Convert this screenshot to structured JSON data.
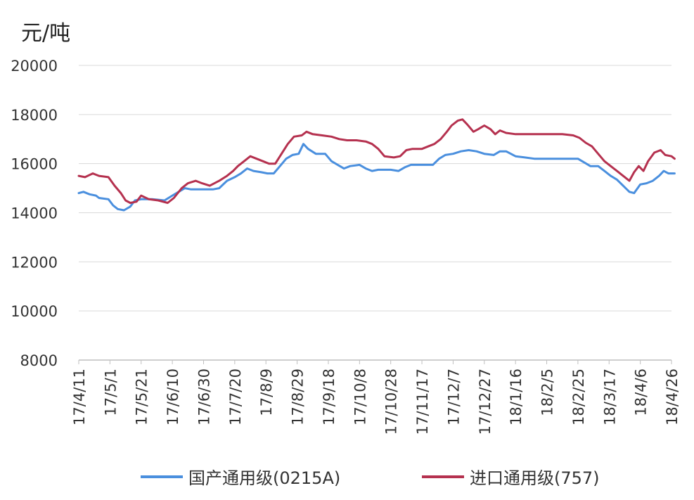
{
  "chart_data": {
    "type": "line",
    "unit_label": "元/吨",
    "ylim": [
      8000,
      20000
    ],
    "yticks": [
      20000,
      18000,
      16000,
      14000,
      12000,
      10000,
      8000
    ],
    "grid": "horizontal",
    "legend_position": "bottom",
    "x_tick_labels": [
      "17/4/11",
      "17/5/1",
      "17/5/21",
      "17/6/10",
      "17/6/30",
      "17/7/20",
      "17/8/9",
      "17/8/29",
      "17/9/18",
      "17/10/8",
      "17/10/28",
      "17/11/17",
      "17/12/7",
      "17/12/27",
      "18/1/16",
      "18/2/5",
      "18/2/25",
      "18/3/17",
      "18/4/6",
      "18/4/26"
    ],
    "x_start": "17/4/11",
    "x_end": "18/4/26",
    "series": [
      {
        "name": "国产通用级(0215A)",
        "color": "#4a8fde",
        "points": [
          [
            "2017-04-11",
            14800
          ],
          [
            "2017-04-14",
            14850
          ],
          [
            "2017-04-18",
            14750
          ],
          [
            "2017-04-22",
            14700
          ],
          [
            "2017-04-24",
            14600
          ],
          [
            "2017-04-30",
            14550
          ],
          [
            "2017-05-03",
            14300
          ],
          [
            "2017-05-06",
            14150
          ],
          [
            "2017-05-10",
            14100
          ],
          [
            "2017-05-14",
            14250
          ],
          [
            "2017-05-17",
            14500
          ],
          [
            "2017-05-21",
            14550
          ],
          [
            "2017-05-28",
            14550
          ],
          [
            "2017-06-05",
            14500
          ],
          [
            "2017-06-10",
            14700
          ],
          [
            "2017-06-14",
            14850
          ],
          [
            "2017-06-18",
            15000
          ],
          [
            "2017-06-22",
            14950
          ],
          [
            "2017-06-30",
            14950
          ],
          [
            "2017-07-06",
            14950
          ],
          [
            "2017-07-10",
            15000
          ],
          [
            "2017-07-15",
            15300
          ],
          [
            "2017-07-20",
            15450
          ],
          [
            "2017-07-24",
            15600
          ],
          [
            "2017-07-28",
            15800
          ],
          [
            "2017-08-01",
            15700
          ],
          [
            "2017-08-06",
            15650
          ],
          [
            "2017-08-10",
            15600
          ],
          [
            "2017-08-14",
            15600
          ],
          [
            "2017-08-18",
            15900
          ],
          [
            "2017-08-22",
            16200
          ],
          [
            "2017-08-26",
            16350
          ],
          [
            "2017-08-30",
            16400
          ],
          [
            "2017-09-02",
            16800
          ],
          [
            "2017-09-05",
            16600
          ],
          [
            "2017-09-10",
            16400
          ],
          [
            "2017-09-16",
            16400
          ],
          [
            "2017-09-20",
            16100
          ],
          [
            "2017-09-24",
            15950
          ],
          [
            "2017-09-28",
            15800
          ],
          [
            "2017-10-02",
            15900
          ],
          [
            "2017-10-08",
            15950
          ],
          [
            "2017-10-12",
            15800
          ],
          [
            "2017-10-16",
            15700
          ],
          [
            "2017-10-20",
            15750
          ],
          [
            "2017-10-28",
            15750
          ],
          [
            "2017-11-02",
            15700
          ],
          [
            "2017-11-06",
            15850
          ],
          [
            "2017-11-10",
            15950
          ],
          [
            "2017-11-17",
            15950
          ],
          [
            "2017-11-24",
            15950
          ],
          [
            "2017-11-28",
            16200
          ],
          [
            "2017-12-02",
            16350
          ],
          [
            "2017-12-07",
            16400
          ],
          [
            "2017-12-12",
            16500
          ],
          [
            "2017-12-17",
            16550
          ],
          [
            "2017-12-22",
            16500
          ],
          [
            "2017-12-27",
            16400
          ],
          [
            "2018-01-02",
            16350
          ],
          [
            "2018-01-06",
            16500
          ],
          [
            "2018-01-10",
            16500
          ],
          [
            "2018-01-16",
            16300
          ],
          [
            "2018-01-22",
            16250
          ],
          [
            "2018-01-28",
            16200
          ],
          [
            "2018-02-05",
            16200
          ],
          [
            "2018-02-15",
            16200
          ],
          [
            "2018-02-25",
            16200
          ],
          [
            "2018-03-01",
            16050
          ],
          [
            "2018-03-05",
            15900
          ],
          [
            "2018-03-10",
            15900
          ],
          [
            "2018-03-14",
            15700
          ],
          [
            "2018-03-18",
            15500
          ],
          [
            "2018-03-22",
            15350
          ],
          [
            "2018-03-26",
            15100
          ],
          [
            "2018-03-30",
            14850
          ],
          [
            "2018-04-02",
            14800
          ],
          [
            "2018-04-06",
            15150
          ],
          [
            "2018-04-10",
            15200
          ],
          [
            "2018-04-14",
            15300
          ],
          [
            "2018-04-18",
            15500
          ],
          [
            "2018-04-21",
            15700
          ],
          [
            "2018-04-24",
            15600
          ],
          [
            "2018-04-28",
            15600
          ]
        ]
      },
      {
        "name": "进口通用级(757)",
        "color": "#b5314f",
        "points": [
          [
            "2017-04-11",
            15500
          ],
          [
            "2017-04-15",
            15450
          ],
          [
            "2017-04-20",
            15600
          ],
          [
            "2017-04-24",
            15500
          ],
          [
            "2017-04-30",
            15450
          ],
          [
            "2017-05-04",
            15100
          ],
          [
            "2017-05-08",
            14800
          ],
          [
            "2017-05-11",
            14500
          ],
          [
            "2017-05-14",
            14400
          ],
          [
            "2017-05-18",
            14450
          ],
          [
            "2017-05-21",
            14700
          ],
          [
            "2017-05-26",
            14550
          ],
          [
            "2017-06-01",
            14500
          ],
          [
            "2017-06-07",
            14400
          ],
          [
            "2017-06-11",
            14600
          ],
          [
            "2017-06-16",
            15000
          ],
          [
            "2017-06-20",
            15200
          ],
          [
            "2017-06-25",
            15300
          ],
          [
            "2017-06-29",
            15200
          ],
          [
            "2017-07-04",
            15100
          ],
          [
            "2017-07-10",
            15300
          ],
          [
            "2017-07-15",
            15500
          ],
          [
            "2017-07-19",
            15700
          ],
          [
            "2017-07-22",
            15900
          ],
          [
            "2017-07-26",
            16100
          ],
          [
            "2017-07-30",
            16300
          ],
          [
            "2017-08-03",
            16200
          ],
          [
            "2017-08-07",
            16100
          ],
          [
            "2017-08-11",
            16000
          ],
          [
            "2017-08-15",
            16000
          ],
          [
            "2017-08-19",
            16400
          ],
          [
            "2017-08-23",
            16800
          ],
          [
            "2017-08-27",
            17100
          ],
          [
            "2017-09-01",
            17150
          ],
          [
            "2017-09-04",
            17300
          ],
          [
            "2017-09-08",
            17200
          ],
          [
            "2017-09-14",
            17150
          ],
          [
            "2017-09-20",
            17100
          ],
          [
            "2017-09-25",
            17000
          ],
          [
            "2017-09-30",
            16950
          ],
          [
            "2017-10-06",
            16950
          ],
          [
            "2017-10-12",
            16900
          ],
          [
            "2017-10-16",
            16800
          ],
          [
            "2017-10-20",
            16600
          ],
          [
            "2017-10-24",
            16300
          ],
          [
            "2017-10-30",
            16250
          ],
          [
            "2017-11-03",
            16300
          ],
          [
            "2017-11-07",
            16550
          ],
          [
            "2017-11-11",
            16600
          ],
          [
            "2017-11-17",
            16600
          ],
          [
            "2017-11-21",
            16700
          ],
          [
            "2017-11-25",
            16800
          ],
          [
            "2017-11-29",
            17000
          ],
          [
            "2017-12-03",
            17300
          ],
          [
            "2017-12-06",
            17550
          ],
          [
            "2017-12-10",
            17750
          ],
          [
            "2017-12-13",
            17800
          ],
          [
            "2017-12-16",
            17600
          ],
          [
            "2017-12-20",
            17300
          ],
          [
            "2017-12-23",
            17400
          ],
          [
            "2017-12-27",
            17550
          ],
          [
            "2017-12-31",
            17400
          ],
          [
            "2018-01-03",
            17200
          ],
          [
            "2018-01-06",
            17350
          ],
          [
            "2018-01-10",
            17250
          ],
          [
            "2018-01-16",
            17200
          ],
          [
            "2018-01-24",
            17200
          ],
          [
            "2018-02-05",
            17200
          ],
          [
            "2018-02-15",
            17200
          ],
          [
            "2018-02-22",
            17150
          ],
          [
            "2018-02-26",
            17050
          ],
          [
            "2018-03-02",
            16850
          ],
          [
            "2018-03-06",
            16700
          ],
          [
            "2018-03-10",
            16400
          ],
          [
            "2018-03-14",
            16100
          ],
          [
            "2018-03-18",
            15900
          ],
          [
            "2018-03-22",
            15700
          ],
          [
            "2018-03-26",
            15500
          ],
          [
            "2018-03-30",
            15300
          ],
          [
            "2018-04-02",
            15650
          ],
          [
            "2018-04-05",
            15900
          ],
          [
            "2018-04-08",
            15700
          ],
          [
            "2018-04-11",
            16100
          ],
          [
            "2018-04-15",
            16450
          ],
          [
            "2018-04-19",
            16550
          ],
          [
            "2018-04-22",
            16350
          ],
          [
            "2018-04-26",
            16300
          ],
          [
            "2018-04-28",
            16200
          ]
        ]
      }
    ]
  }
}
